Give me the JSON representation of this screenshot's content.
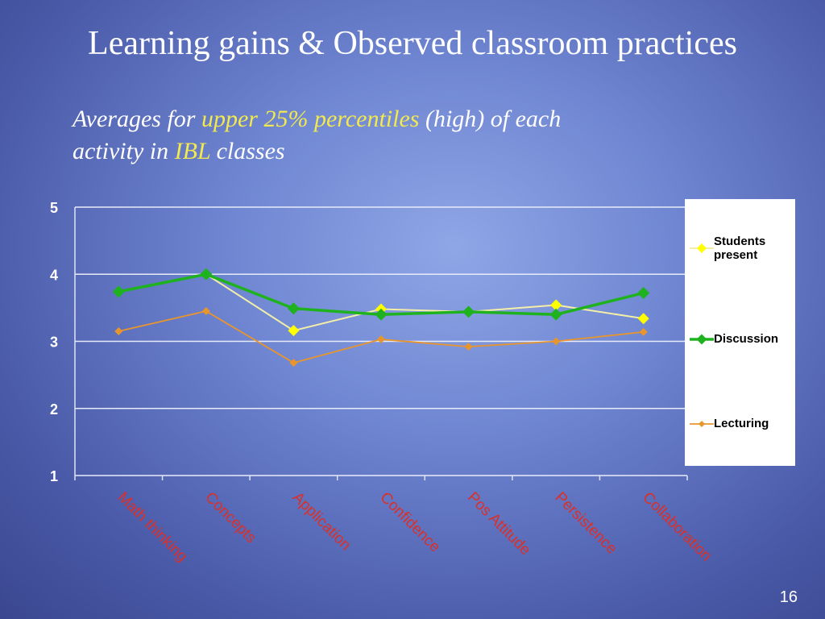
{
  "title": "Learning gains & Observed classroom practices",
  "subtitle": [
    [
      {
        "text": "Averages for ",
        "color": "#ffffff"
      },
      {
        "text": "upper 25% percentiles",
        "color": "#f2e94e"
      },
      {
        "text": " (high) of each",
        "color": "#ffffff"
      }
    ],
    [
      {
        "text": "activity in ",
        "color": "#ffffff"
      },
      {
        "text": "IBL",
        "color": "#f2e94e"
      },
      {
        "text": " classes",
        "color": "#ffffff"
      }
    ]
  ],
  "page_number": "16",
  "chart_data": {
    "type": "line",
    "categories": [
      "Math thinking",
      "Concepts",
      "Application",
      "Confidence",
      "Pos Attitude",
      "Persistence",
      "Collaboration"
    ],
    "series": [
      {
        "name": "Students present",
        "color": "#ffff00",
        "values": [
          3.74,
          4.0,
          3.16,
          3.48,
          3.44,
          3.54,
          3.34
        ]
      },
      {
        "name": "Discussion",
        "color": "#1fb21f",
        "values": [
          3.74,
          4.0,
          3.49,
          3.4,
          3.44,
          3.4,
          3.72
        ]
      },
      {
        "name": "Lecturing",
        "color": "#e8952e",
        "values": [
          3.15,
          3.45,
          2.68,
          3.03,
          2.92,
          3.0,
          3.14
        ]
      }
    ],
    "ylim": [
      1,
      5
    ],
    "yticks": [
      1,
      2,
      3,
      4,
      5
    ],
    "grid": true,
    "legend": "right"
  }
}
